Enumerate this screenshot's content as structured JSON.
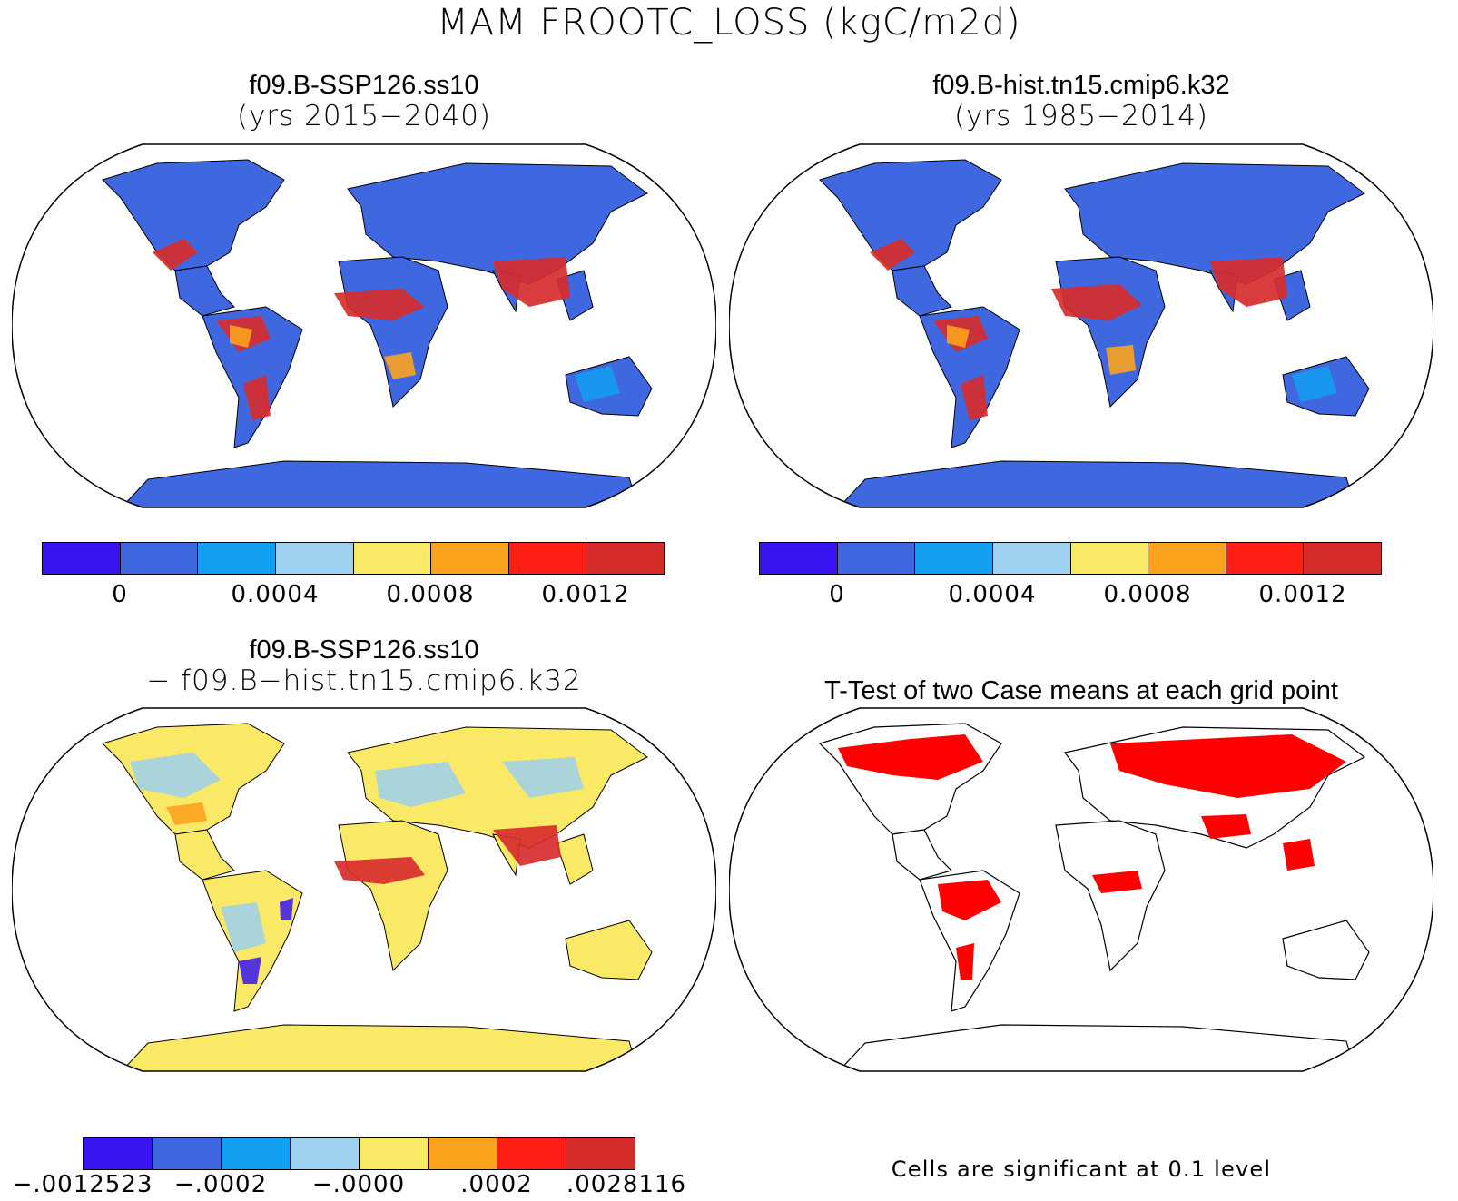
{
  "main_title": "MAM FROOTC_LOSS (kgC/m2d)",
  "colors": {
    "scale": [
      "#3a14f0",
      "#3f67e0",
      "#13a0f0",
      "#9ed0ef",
      "#f9e966",
      "#fca31e",
      "#fd1f16",
      "#d72c2c"
    ],
    "ocean": "#ffffff",
    "coast": "#000000",
    "significant": "#ff0000"
  },
  "panels": {
    "top_left": {
      "title_line1": "f09.B-SSP126.ss10",
      "title_line2": "(yrs 2015−2040)",
      "dominant_color": "#3f67e0",
      "colorbar_labels": [
        "0",
        "0.0004",
        "0.0008",
        "0.0012"
      ]
    },
    "top_right": {
      "title_line1": "f09.B-hist.tn15.cmip6.k32",
      "title_line2": "(yrs 1985−2014)",
      "dominant_color": "#3f67e0",
      "colorbar_labels": [
        "0",
        "0.0004",
        "0.0008",
        "0.0012"
      ]
    },
    "bottom_left": {
      "title_line1": "f09.B-SSP126.ss10",
      "title_line2": "− f09.B−hist.tn15.cmip6.k32",
      "dominant_color": "#f9e966",
      "colorbar_labels": [
        "−.0012523",
        "−.0002",
        "−.0000",
        ".0002",
        ".0028116"
      ]
    },
    "bottom_right": {
      "title": "T-Test of two Case means at each grid point",
      "note": "Cells are significant at 0.1 level"
    }
  }
}
